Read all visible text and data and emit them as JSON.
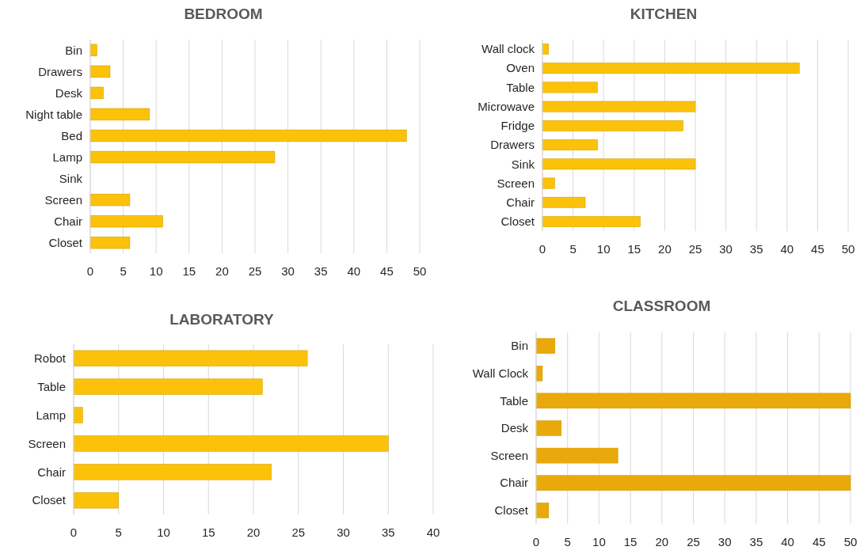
{
  "chart_data": [
    {
      "type": "bar",
      "orientation": "horizontal",
      "title": "BEDROOM",
      "categories": [
        "Bin",
        "Drawers",
        "Desk",
        "Night table",
        "Bed",
        "Lamp",
        "Sink",
        "Screen",
        "Chair",
        "Closet"
      ],
      "values": [
        1,
        3,
        2,
        9,
        48,
        28,
        0,
        6,
        11,
        6
      ],
      "color": "#fbc209",
      "xlim": [
        0,
        50
      ],
      "xticks": [
        0,
        5,
        10,
        15,
        20,
        25,
        30,
        35,
        40,
        45,
        50
      ],
      "grid": "x"
    },
    {
      "type": "bar",
      "orientation": "horizontal",
      "title": "KITCHEN",
      "categories": [
        "Wall clock",
        "Oven",
        "Table",
        "Microwave",
        "Fridge",
        "Drawers",
        "Sink",
        "Screen",
        "Chair",
        "Closet"
      ],
      "values": [
        1,
        42,
        9,
        25,
        23,
        9,
        25,
        2,
        7,
        16
      ],
      "color": "#fbc209",
      "xlim": [
        0,
        50
      ],
      "xticks": [
        0,
        5,
        10,
        15,
        20,
        25,
        30,
        35,
        40,
        45,
        50
      ],
      "grid": "x"
    },
    {
      "type": "bar",
      "orientation": "horizontal",
      "title": "LABORATORY",
      "categories": [
        "Robot",
        "Table",
        "Lamp",
        "Screen",
        "Chair",
        "Closet"
      ],
      "values": [
        26,
        21,
        1,
        35,
        22,
        5
      ],
      "color": "#fbc209",
      "xlim": [
        0,
        40
      ],
      "xticks": [
        0,
        5,
        10,
        15,
        20,
        25,
        30,
        35,
        40
      ],
      "grid": "x"
    },
    {
      "type": "bar",
      "orientation": "horizontal",
      "title": "CLASSROOM",
      "categories": [
        "Bin",
        "Wall Clock",
        "Table",
        "Desk",
        "Screen",
        "Chair",
        "Closet"
      ],
      "values": [
        3,
        1,
        50,
        4,
        13,
        50,
        2
      ],
      "color": "#eaa90a",
      "xlim": [
        0,
        50
      ],
      "xticks": [
        0,
        5,
        10,
        15,
        20,
        25,
        30,
        35,
        40,
        45,
        50
      ],
      "grid": "x"
    }
  ]
}
